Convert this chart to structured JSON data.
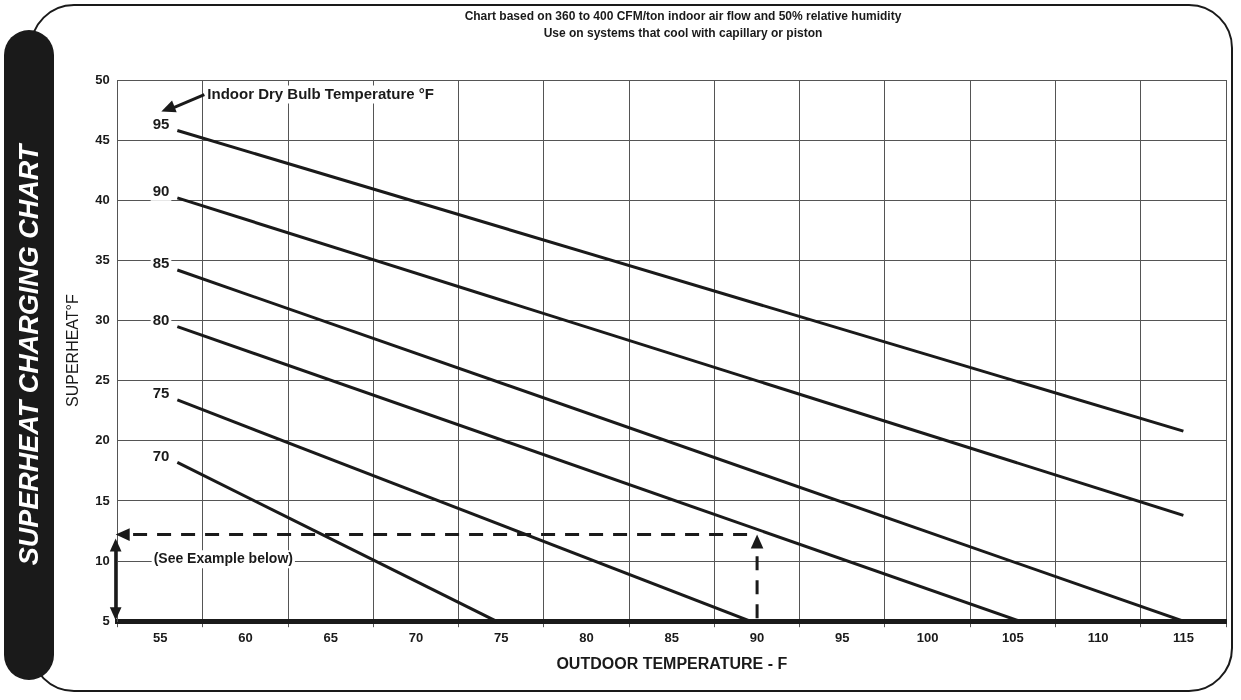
{
  "chart_data": {
    "type": "line",
    "title": "SUPERHEAT CHARGING CHART",
    "subtitle": "Chart based on 360 to 400 CFM/ton indoor air flow and 50% relative humidity",
    "annotations": [
      "Use on systems that cool with capillary or piston",
      "(See Example below)"
    ],
    "ref_lines": [
      {
        "axis": "x",
        "value": 90,
        "color": "#1a1a1a",
        "line_style": "dashed"
      },
      {
        "axis": "y",
        "value": 12.2,
        "color": "#1a1a1a",
        "line_style": "dashed"
      }
    ],
    "xlabel": "OUTDOOR TEMPERATURE - F",
    "ylabel": "SUPERHEAT°F",
    "legend_title": "Indoor Dry Bulb Temperature °F",
    "xlim": [
      52.5,
      117.5
    ],
    "xticks": [
      {
        "value": 52.5,
        "label": null
      },
      55,
      {
        "value": 57.5,
        "label": null
      },
      60,
      {
        "value": 62.5,
        "label": null
      },
      65,
      {
        "value": 67.5,
        "label": null
      },
      70,
      {
        "value": 72.5,
        "label": null
      },
      75,
      {
        "value": 77.5,
        "label": null
      },
      80,
      {
        "value": 82.5,
        "label": null
      },
      85,
      {
        "value": 87.5,
        "label": null
      },
      90,
      {
        "value": 92.5,
        "label": null
      },
      95,
      {
        "value": 97.5,
        "label": null
      },
      100,
      {
        "value": 102.5,
        "label": null
      },
      105,
      {
        "value": 107.5,
        "label": null
      },
      110,
      {
        "value": 112.5,
        "label": null
      },
      115,
      {
        "value": 117.5,
        "label": null
      }
    ],
    "ylim": [
      5,
      50
    ],
    "yticks": [
      5,
      10,
      15,
      20,
      25,
      30,
      35,
      40,
      45,
      50
    ],
    "grid": true,
    "marker": "none",
    "line_style": "solid",
    "series": [
      {
        "name": "95",
        "color": "#1a1a1a",
        "x": [
          56,
          115
        ],
        "values": [
          45.8,
          20.8
        ]
      },
      {
        "name": "90",
        "color": "#1a1a1a",
        "x": [
          56,
          115
        ],
        "values": [
          40.2,
          13.8
        ]
      },
      {
        "name": "85",
        "color": "#1a1a1a",
        "x": [
          56,
          115
        ],
        "values": [
          34.2,
          5
        ]
      },
      {
        "name": "80",
        "color": "#1a1a1a",
        "x": [
          56,
          105.4
        ],
        "values": [
          29.5,
          5
        ]
      },
      {
        "name": "75",
        "color": "#1a1a1a",
        "x": [
          56,
          89.6
        ],
        "values": [
          23.4,
          5
        ]
      },
      {
        "name": "70",
        "color": "#1a1a1a",
        "x": [
          56,
          74.7
        ],
        "values": [
          18.2,
          5
        ]
      }
    ]
  }
}
